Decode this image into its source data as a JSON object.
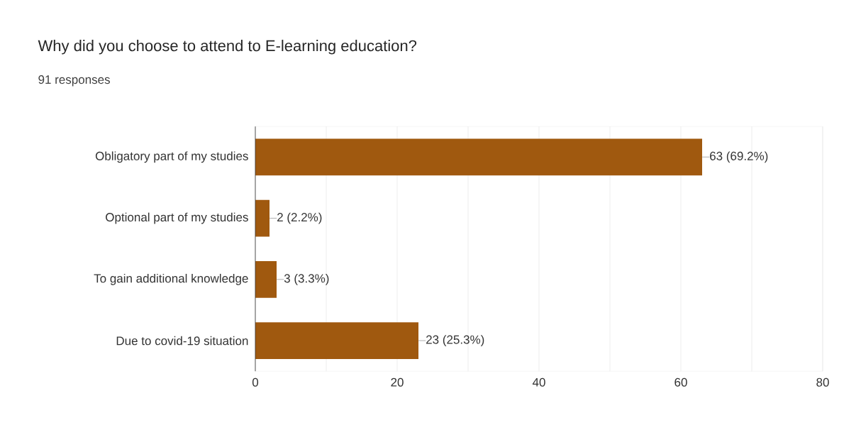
{
  "chart_data": {
    "type": "bar",
    "orientation": "horizontal",
    "title": "Why did you choose to attend to E-learning education?",
    "subtitle": "91 responses",
    "categories": [
      "Obligatory part of my studies",
      "Optional part of my studies",
      "To gain additional knowledge",
      "Due to covid-19 situation"
    ],
    "values": [
      63,
      2,
      3,
      23
    ],
    "value_labels": [
      "63 (69.2%)",
      "2 (2.2%)",
      "3 (3.3%)",
      "23 (25.3%)"
    ],
    "color": "#a0590f",
    "xlim": [
      0,
      80
    ],
    "xticks": [
      0,
      20,
      40,
      60,
      80
    ],
    "grid": "x"
  }
}
